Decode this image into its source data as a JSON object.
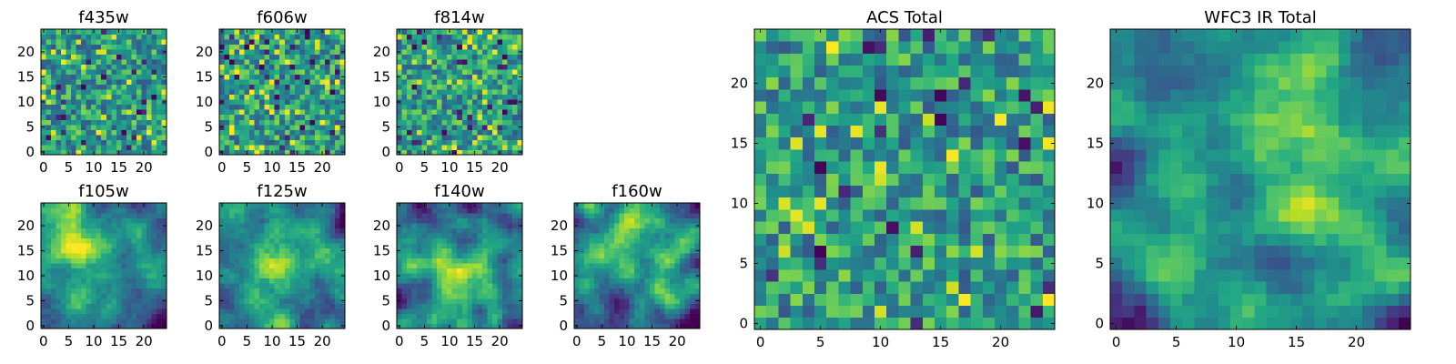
{
  "chart_data": [
    {
      "type": "heatmap",
      "title": "f435w",
      "grid_size": 25,
      "pattern": "noise",
      "seed": 11,
      "xticks": [
        "0",
        "5",
        "10",
        "15",
        "20"
      ],
      "yticks": [
        "0",
        "5",
        "10",
        "15",
        "20"
      ],
      "xlim": [
        -0.5,
        24.5
      ],
      "ylim": [
        -0.5,
        24.5
      ],
      "colormap": "viridis"
    },
    {
      "type": "heatmap",
      "title": "f606w",
      "grid_size": 25,
      "pattern": "noise",
      "seed": 23,
      "xticks": [
        "0",
        "5",
        "10",
        "15",
        "20"
      ],
      "yticks": [
        "0",
        "5",
        "10",
        "15",
        "20"
      ],
      "xlim": [
        -0.5,
        24.5
      ],
      "ylim": [
        -0.5,
        24.5
      ],
      "colormap": "viridis"
    },
    {
      "type": "heatmap",
      "title": "f814w",
      "grid_size": 25,
      "pattern": "noise",
      "seed": 37,
      "xticks": [
        "0",
        "5",
        "10",
        "15",
        "20"
      ],
      "yticks": [
        "0",
        "5",
        "10",
        "15",
        "20"
      ],
      "xlim": [
        -0.5,
        24.5
      ],
      "ylim": [
        -0.5,
        24.5
      ],
      "colormap": "viridis"
    },
    {
      "type": "heatmap",
      "title": "f105w",
      "grid_size": 25,
      "pattern": "smooth",
      "seed": 41,
      "xticks": [
        "0",
        "5",
        "10",
        "15",
        "20"
      ],
      "yticks": [
        "0",
        "5",
        "10",
        "15",
        "20"
      ],
      "xlim": [
        -0.5,
        24.5
      ],
      "ylim": [
        -0.5,
        24.5
      ],
      "colormap": "viridis"
    },
    {
      "type": "heatmap",
      "title": "f125w",
      "grid_size": 25,
      "pattern": "smooth",
      "seed": 53,
      "xticks": [
        "0",
        "5",
        "10",
        "15",
        "20"
      ],
      "yticks": [
        "0",
        "5",
        "10",
        "15",
        "20"
      ],
      "xlim": [
        -0.5,
        24.5
      ],
      "ylim": [
        -0.5,
        24.5
      ],
      "colormap": "viridis"
    },
    {
      "type": "heatmap",
      "title": "f140w",
      "grid_size": 25,
      "pattern": "smooth",
      "seed": 67,
      "xticks": [
        "0",
        "5",
        "10",
        "15",
        "20"
      ],
      "yticks": [
        "0",
        "5",
        "10",
        "15",
        "20"
      ],
      "xlim": [
        -0.5,
        24.5
      ],
      "ylim": [
        -0.5,
        24.5
      ],
      "colormap": "viridis"
    },
    {
      "type": "heatmap",
      "title": "f160w",
      "grid_size": 25,
      "pattern": "smooth",
      "seed": 79,
      "xticks": [
        "0",
        "5",
        "10",
        "15",
        "20"
      ],
      "yticks": [
        "0",
        "5",
        "10",
        "15",
        "20"
      ],
      "xlim": [
        -0.5,
        24.5
      ],
      "ylim": [
        -0.5,
        24.5
      ],
      "colormap": "viridis"
    },
    {
      "type": "heatmap",
      "title": "ACS Total",
      "grid_size": 25,
      "pattern": "noise",
      "seed": 97,
      "xticks": [
        "0",
        "5",
        "10",
        "15",
        "20"
      ],
      "yticks": [
        "0",
        "5",
        "10",
        "15",
        "20"
      ],
      "xlim": [
        -0.5,
        24.5
      ],
      "ylim": [
        -0.5,
        24.5
      ],
      "colormap": "viridis"
    },
    {
      "type": "heatmap",
      "title": "WFC3 IR Total",
      "grid_size": 25,
      "pattern": "smooth",
      "seed": 131,
      "xticks": [
        "0",
        "5",
        "10",
        "15",
        "20"
      ],
      "yticks": [
        "0",
        "5",
        "10",
        "15",
        "20"
      ],
      "xlim": [
        -0.5,
        24.5
      ],
      "ylim": [
        -0.5,
        24.5
      ],
      "colormap": "viridis"
    }
  ]
}
